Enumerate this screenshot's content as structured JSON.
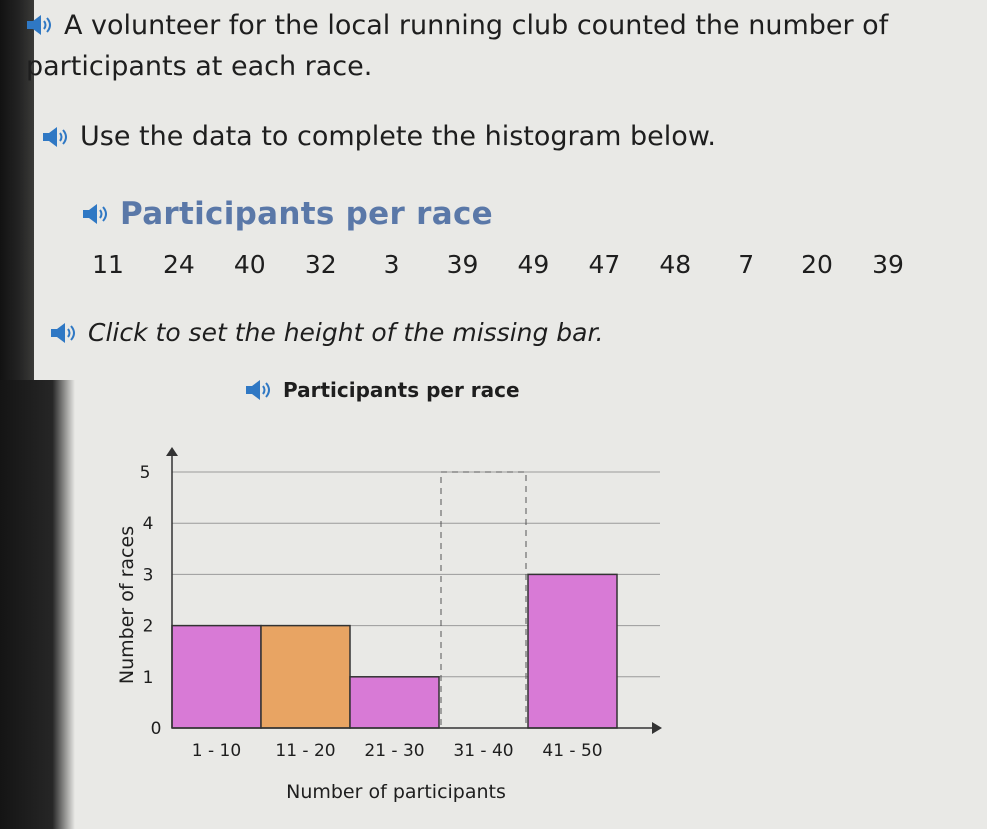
{
  "intro_text": "A volunteer for the local running club counted the number of participants at each race.",
  "instruction_text": "Use the data to complete the histogram below.",
  "table_heading": "Participants per race",
  "data_values": [
    11,
    24,
    40,
    32,
    3,
    39,
    49,
    47,
    48,
    7,
    20,
    39
  ],
  "click_instruction": "Click to set the height of the missing bar.",
  "colors": {
    "bar": "#d87ad6",
    "selected_bar": "#e8a463",
    "heading": "#5a78a8",
    "speaker": "#2f78c4"
  },
  "chart_data": {
    "type": "bar",
    "title": "Participants per race",
    "xlabel": "Number of participants",
    "ylabel": "Number of races",
    "categories": [
      "1 - 10",
      "11 - 20",
      "21 - 30",
      "31 - 40",
      "41 - 50"
    ],
    "values": [
      2,
      2,
      1,
      null,
      3
    ],
    "highlighted_category": "11 - 20",
    "missing_category": "31 - 40",
    "yticks": [
      "0",
      "1",
      "2",
      "3",
      "4",
      "5"
    ],
    "ylim": [
      0,
      5
    ],
    "grid": true
  }
}
